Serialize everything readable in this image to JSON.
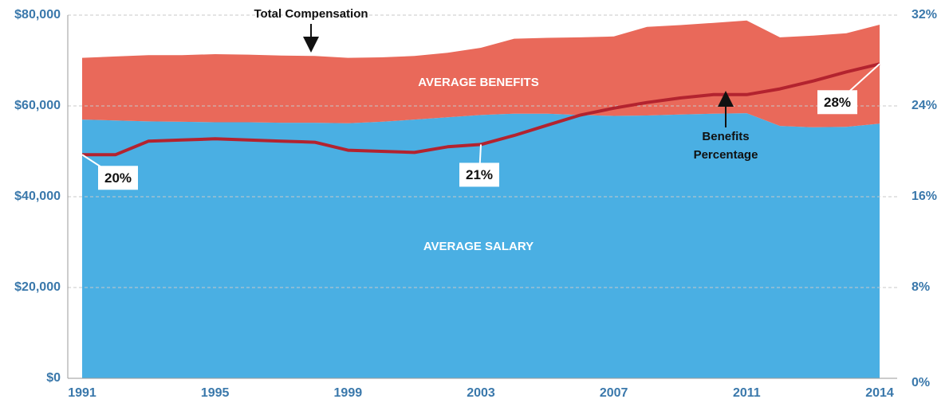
{
  "chart_data": {
    "type": "stacked-area-line",
    "categories": [
      "1991",
      null,
      null,
      null,
      "1995",
      null,
      null,
      null,
      "1999",
      null,
      null,
      null,
      "2003",
      null,
      null,
      null,
      "2007",
      null,
      null,
      null,
      "2011",
      null,
      null,
      null,
      "2014"
    ],
    "series": [
      {
        "name": "AVERAGE SALARY",
        "color": "#4aafe3",
        "type": "area",
        "values": [
          57000,
          56800,
          56600,
          56500,
          56400,
          56400,
          56300,
          56300,
          56200,
          56500,
          57000,
          57500,
          58000,
          58300,
          58300,
          58000,
          57800,
          57900,
          58100,
          58300,
          58400,
          55600,
          55300,
          55400,
          56100
        ]
      },
      {
        "name": "AVERAGE BENEFITS",
        "color": "#e9695a",
        "type": "area",
        "values": [
          13600,
          14100,
          14600,
          14700,
          15000,
          14900,
          14800,
          14700,
          14400,
          14200,
          14000,
          14200,
          14800,
          16500,
          16700,
          17100,
          17500,
          19500,
          19700,
          20000,
          20400,
          19500,
          20200,
          20600,
          21800
        ]
      },
      {
        "name": "Benefits Percentage",
        "color": "#b3232f",
        "type": "line",
        "axis": "y2",
        "values": [
          19.7,
          19.7,
          20.9,
          21.0,
          21.1,
          21.0,
          20.9,
          20.8,
          20.1,
          20.0,
          19.9,
          20.4,
          20.6,
          21.4,
          22.3,
          23.2,
          23.8,
          24.3,
          24.7,
          25.0,
          25.0,
          25.5,
          26.2,
          27.0,
          27.7
        ],
        "value_labels": [
          "20%",
          null,
          null,
          null,
          null,
          null,
          null,
          null,
          null,
          null,
          null,
          null,
          "21%",
          null,
          null,
          null,
          null,
          null,
          null,
          null,
          null,
          null,
          null,
          null,
          "28%"
        ]
      }
    ],
    "annotations": [
      "Total Compensation"
    ],
    "ylim": [
      0,
      80000
    ],
    "yticks": [
      {
        "value": 0,
        "label": "$0"
      },
      {
        "value": 20000,
        "label": "$20,000"
      },
      {
        "value": 40000,
        "label": "$40,000"
      },
      {
        "value": 60000,
        "label": "$60,000"
      },
      {
        "value": 80000,
        "label": "$80,000"
      }
    ],
    "y2lim": [
      0,
      32
    ],
    "y2ticks": [
      {
        "value": 0,
        "label": "0%"
      },
      {
        "value": 8,
        "label": "8%"
      },
      {
        "value": 16,
        "label": "16%"
      },
      {
        "value": 24,
        "label": "24%"
      },
      {
        "value": 32,
        "label": "32%"
      }
    ],
    "grid": true
  }
}
